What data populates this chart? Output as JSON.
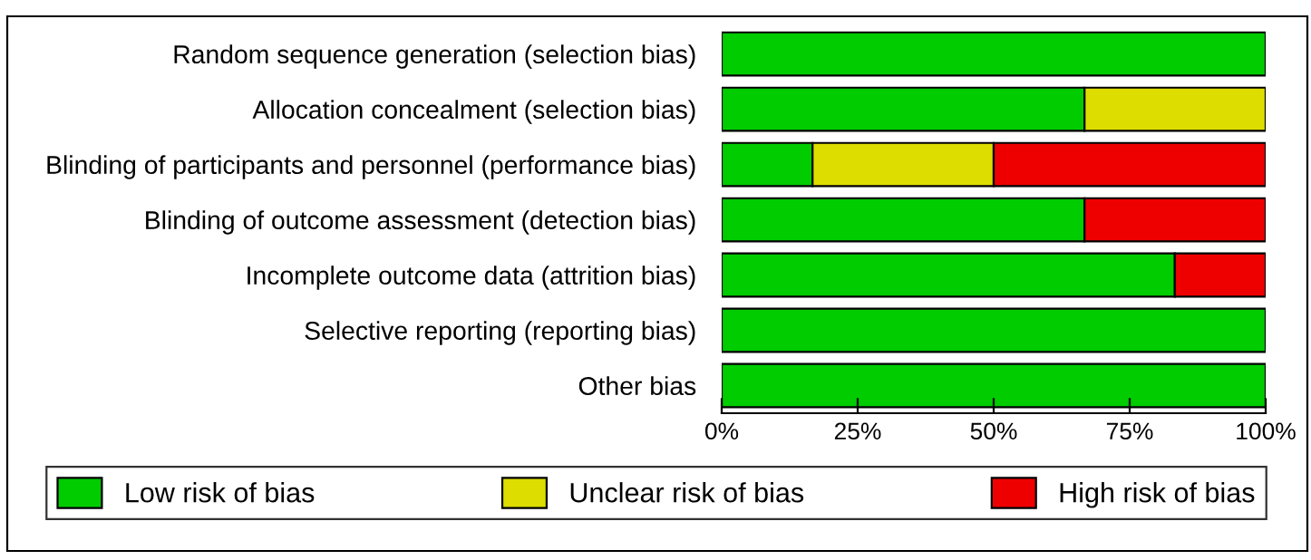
{
  "chart_data": {
    "type": "bar",
    "orientation": "horizontal",
    "stacked": true,
    "categories": [
      "Random sequence generation (selection bias)",
      "Allocation concealment (selection bias)",
      "Blinding of participants and personnel (performance bias)",
      "Blinding of outcome assessment (detection bias)",
      "Incomplete outcome data (attrition bias)",
      "Selective reporting (reporting bias)",
      "Other bias"
    ],
    "series": [
      {
        "name": "Low risk of bias",
        "color": "#00cc00",
        "values": [
          100,
          66.7,
          16.7,
          66.7,
          83.3,
          100,
          100
        ]
      },
      {
        "name": "Unclear risk of bias",
        "color": "#dddd00",
        "values": [
          0,
          33.3,
          33.3,
          0,
          0,
          0,
          0
        ]
      },
      {
        "name": "High risk of bias",
        "color": "#ee0000",
        "values": [
          0,
          0,
          50,
          33.3,
          16.7,
          0,
          0
        ]
      }
    ],
    "xlim": [
      0,
      100
    ],
    "xticks": [
      {
        "value": 0,
        "label": "0%"
      },
      {
        "value": 25,
        "label": "25%"
      },
      {
        "value": 50,
        "label": "50%"
      },
      {
        "value": 75,
        "label": "75%"
      },
      {
        "value": 100,
        "label": "100%"
      }
    ],
    "grid": false,
    "legend": "bottom"
  }
}
